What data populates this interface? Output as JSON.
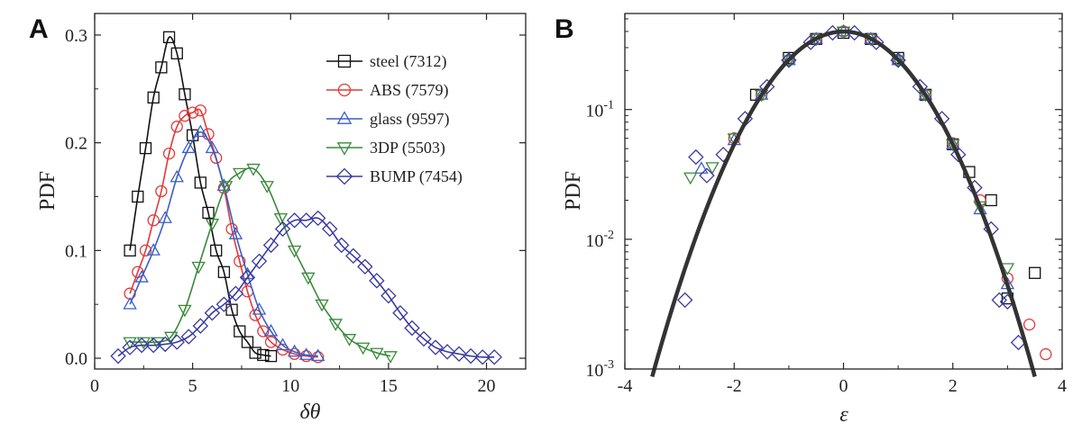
{
  "chart_data": [
    {
      "panel": "A",
      "type": "line",
      "xlabel": "δθ",
      "ylabel": "PDF",
      "xlim": [
        0,
        22
      ],
      "ylim": [
        -0.01,
        0.32
      ],
      "xticks": [
        0,
        5,
        10,
        15,
        20
      ],
      "xtick_labels": [
        "0",
        "5",
        "10",
        "15",
        "20"
      ],
      "yticks": [
        0.0,
        0.1,
        0.2,
        0.3
      ],
      "ytick_labels": [
        "0.0",
        "0.1",
        "0.2",
        "0.3"
      ],
      "legend_position": "top-right",
      "series": [
        {
          "name": "steel",
          "count": "(7312)",
          "color": "#111111",
          "marker": "square",
          "x": [
            1.8,
            2.2,
            2.6,
            3.0,
            3.4,
            3.8,
            4.2,
            4.6,
            5.0,
            5.4,
            5.8,
            6.2,
            6.6,
            7.0,
            7.4,
            7.8,
            8.2,
            8.6,
            9.0
          ],
          "y": [
            0.1,
            0.15,
            0.195,
            0.242,
            0.27,
            0.298,
            0.283,
            0.245,
            0.207,
            0.163,
            0.135,
            0.1,
            0.08,
            0.045,
            0.025,
            0.015,
            0.005,
            0.003,
            0.002
          ]
        },
        {
          "name": "ABS",
          "count": "(7579)",
          "color": "#e03a3a",
          "marker": "circle",
          "x": [
            1.8,
            2.2,
            2.6,
            3.0,
            3.4,
            3.8,
            4.2,
            4.6,
            5.0,
            5.4,
            5.8,
            6.2,
            6.6,
            7.0,
            7.4,
            7.8,
            8.2,
            8.6,
            9.0,
            9.6,
            10.2,
            10.8,
            11.4
          ],
          "y": [
            0.06,
            0.08,
            0.1,
            0.128,
            0.155,
            0.19,
            0.215,
            0.225,
            0.228,
            0.23,
            0.208,
            0.186,
            0.158,
            0.12,
            0.09,
            0.062,
            0.04,
            0.025,
            0.015,
            0.008,
            0.004,
            0.002,
            0.001
          ]
        },
        {
          "name": "glass",
          "count": "(9597)",
          "color": "#3b5fc8",
          "marker": "triangle-up",
          "x": [
            1.8,
            2.4,
            3.0,
            3.6,
            4.2,
            4.8,
            5.4,
            6.0,
            6.6,
            7.2,
            7.8,
            8.4,
            9.0,
            9.6,
            10.2,
            10.8,
            11.4
          ],
          "y": [
            0.05,
            0.075,
            0.1,
            0.13,
            0.168,
            0.195,
            0.21,
            0.195,
            0.16,
            0.115,
            0.078,
            0.045,
            0.025,
            0.012,
            0.006,
            0.003,
            0.002
          ]
        },
        {
          "name": "3DP",
          "count": "(5503)",
          "color": "#3a8a3a",
          "marker": "triangle-down",
          "x": [
            1.8,
            2.5,
            3.2,
            3.9,
            4.6,
            5.3,
            6.0,
            6.7,
            7.4,
            8.1,
            8.8,
            9.5,
            10.2,
            10.9,
            11.6,
            12.3,
            13.0,
            13.7,
            14.4,
            15.1
          ],
          "y": [
            0.015,
            0.015,
            0.015,
            0.02,
            0.045,
            0.085,
            0.125,
            0.16,
            0.172,
            0.176,
            0.16,
            0.13,
            0.1,
            0.075,
            0.05,
            0.032,
            0.018,
            0.01,
            0.005,
            0.002
          ]
        },
        {
          "name": "BUMP",
          "count": "(7454)",
          "color": "#3a3aa0",
          "marker": "diamond",
          "x": [
            1.2,
            1.8,
            2.4,
            3.0,
            3.6,
            4.2,
            4.8,
            5.4,
            6.0,
            6.6,
            7.2,
            7.8,
            8.4,
            9.0,
            9.6,
            10.2,
            10.8,
            11.4,
            12.0,
            12.6,
            13.2,
            13.8,
            14.4,
            15.0,
            15.6,
            16.2,
            16.8,
            17.4,
            18.0,
            18.6,
            19.2,
            19.8,
            20.4
          ],
          "y": [
            0.002,
            0.01,
            0.012,
            0.012,
            0.013,
            0.015,
            0.02,
            0.03,
            0.042,
            0.05,
            0.06,
            0.075,
            0.09,
            0.105,
            0.12,
            0.128,
            0.128,
            0.13,
            0.12,
            0.105,
            0.095,
            0.085,
            0.072,
            0.058,
            0.042,
            0.028,
            0.018,
            0.01,
            0.006,
            0.004,
            0.002,
            0.001,
            0.001
          ]
        }
      ]
    },
    {
      "panel": "B",
      "type": "scatter",
      "yscale": "log",
      "xlabel": "ε",
      "ylabel": "PDF",
      "xlim": [
        -4,
        4
      ],
      "ylim": [
        0.001,
        0.55
      ],
      "xticks": [
        -4,
        -2,
        0,
        2,
        4
      ],
      "xtick_labels": [
        "-4",
        "-2",
        "0",
        "2",
        "4"
      ],
      "yticks": [
        0.001,
        0.01,
        0.1
      ],
      "ytick_bases": [
        "10",
        "10",
        "10"
      ],
      "ytick_exps": [
        "-3",
        "-2",
        "-1"
      ],
      "fit_curve": {
        "label": "Gaussian fit",
        "color": "#333333",
        "x_start": -3.5,
        "x_end": 3.5,
        "mean": 0,
        "sigma": 1
      },
      "series": [
        {
          "name": "steel",
          "color": "#111111",
          "marker": "square",
          "x": [
            -1.6,
            -1.0,
            -0.5,
            0.0,
            0.5,
            1.0,
            1.5,
            2.0,
            2.3,
            2.7,
            3.0,
            3.5
          ],
          "y": [
            0.13,
            0.25,
            0.35,
            0.39,
            0.35,
            0.25,
            0.13,
            0.054,
            0.033,
            0.02,
            0.0035,
            0.0055
          ]
        },
        {
          "name": "ABS",
          "color": "#e03a3a",
          "marker": "circle",
          "x": [
            -2.0,
            -1.5,
            -1.0,
            -0.5,
            0.0,
            0.5,
            1.0,
            1.5,
            2.0,
            2.5,
            3.0,
            3.4,
            3.7
          ],
          "y": [
            0.06,
            0.13,
            0.24,
            0.35,
            0.4,
            0.35,
            0.24,
            0.13,
            0.055,
            0.02,
            0.005,
            0.0022,
            0.0013
          ]
        },
        {
          "name": "glass",
          "color": "#3b5fc8",
          "marker": "triangle-up",
          "x": [
            -2.6,
            -2.0,
            -1.5,
            -1.0,
            -0.5,
            0.0,
            0.5,
            1.0,
            1.5,
            2.0,
            2.5,
            3.0
          ],
          "y": [
            0.035,
            0.058,
            0.13,
            0.24,
            0.35,
            0.4,
            0.35,
            0.24,
            0.13,
            0.054,
            0.017,
            0.0045
          ]
        },
        {
          "name": "3DP",
          "color": "#3a8a3a",
          "marker": "triangle-down",
          "x": [
            -2.8,
            -2.4,
            -2.0,
            -1.5,
            -1.0,
            -0.5,
            0.0,
            0.5,
            1.0,
            1.5,
            2.0,
            2.5,
            3.0
          ],
          "y": [
            0.03,
            0.036,
            0.06,
            0.13,
            0.24,
            0.35,
            0.4,
            0.35,
            0.24,
            0.13,
            0.054,
            0.018,
            0.006
          ]
        },
        {
          "name": "BUMP",
          "color": "#3a3aa0",
          "marker": "diamond",
          "x": [
            -2.9,
            -2.7,
            -2.5,
            -2.2,
            -1.8,
            -1.4,
            -1.0,
            -0.6,
            -0.2,
            0.2,
            0.6,
            1.0,
            1.4,
            1.8,
            2.1,
            2.4,
            2.7,
            2.85,
            3.0,
            3.2
          ],
          "y": [
            0.0034,
            0.043,
            0.031,
            0.045,
            0.085,
            0.15,
            0.24,
            0.33,
            0.39,
            0.39,
            0.33,
            0.24,
            0.15,
            0.085,
            0.045,
            0.025,
            0.012,
            0.0034,
            0.0033,
            0.0016
          ]
        }
      ]
    }
  ]
}
